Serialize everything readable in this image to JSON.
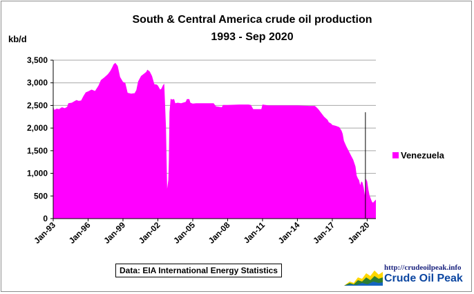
{
  "chart_data": {
    "type": "area",
    "title": "South & Central America crude oil production",
    "subtitle": "1993 - Sep 2020",
    "ylabel": "kb/d",
    "ylim": [
      0,
      3500
    ],
    "yticks": [
      "0",
      "500",
      "1,000",
      "1,500",
      "2,000",
      "2,500",
      "3,000",
      "3,500"
    ],
    "ytick_values": [
      0,
      500,
      1000,
      1500,
      2000,
      2500,
      3000,
      3500
    ],
    "xlim": [
      1993.0,
      2020.75
    ],
    "xticks": [
      "Jan-93",
      "Jan-96",
      "Jan-99",
      "Jan-02",
      "Jan-05",
      "Jan-08",
      "Jan-11",
      "Jan-14",
      "Jan-17",
      "Jan-20"
    ],
    "xtick_values": [
      1993,
      1996,
      1999,
      2002,
      2005,
      2008,
      2011,
      2014,
      2017,
      2020
    ],
    "grid": "horizontal",
    "legend": "right",
    "color": "#ff00ff",
    "series": [
      {
        "name": "Venezuela",
        "x": [
          1993.0,
          1993.1,
          1993.3,
          1993.5,
          1993.75,
          1994.0,
          1994.2,
          1994.3,
          1994.6,
          1994.8,
          1995.0,
          1995.2,
          1995.4,
          1995.6,
          1995.8,
          1996.0,
          1996.3,
          1996.6,
          1996.9,
          1997.1,
          1997.4,
          1997.7,
          1997.9,
          1998.05,
          1998.2,
          1998.35,
          1998.55,
          1998.75,
          1999.0,
          1999.2,
          1999.4,
          1999.7,
          2000.0,
          2000.15,
          2000.3,
          2000.55,
          2000.8,
          2001.0,
          2001.1,
          2001.3,
          2001.5,
          2001.7,
          2001.9,
          2002.0,
          2002.2,
          2002.3,
          2002.45,
          2002.55,
          2002.7,
          2002.8,
          2002.9,
          2002.95,
          2003.0,
          2003.1,
          2003.2,
          2003.4,
          2003.5,
          2003.7,
          2004.0,
          2004.4,
          2004.5,
          2004.7,
          2004.8,
          2005.0,
          2005.3,
          2006.0,
          2006.8,
          2007.0,
          2007.5,
          2007.6,
          2008.0,
          2009.0,
          2009.8,
          2010.0,
          2010.2,
          2010.6,
          2010.9,
          2011.0,
          2011.5,
          2012.0,
          2013.0,
          2014.0,
          2015.0,
          2015.5,
          2015.6,
          2015.8,
          2016.0,
          2016.3,
          2016.6,
          2016.7,
          2016.9,
          2017.0,
          2017.3,
          2017.6,
          2017.8,
          2017.9,
          2018.0,
          2018.2,
          2018.4,
          2018.6,
          2018.8,
          2019.0,
          2019.1,
          2019.2,
          2019.3,
          2019.4,
          2019.5,
          2019.6,
          2019.7,
          2019.8,
          2019.9,
          2020.0,
          2020.1,
          2020.2,
          2020.3,
          2020.4,
          2020.5,
          2020.6,
          2020.75
        ],
        "values": [
          2480,
          2400,
          2430,
          2420,
          2460,
          2440,
          2470,
          2550,
          2560,
          2590,
          2620,
          2600,
          2610,
          2710,
          2790,
          2810,
          2850,
          2820,
          2940,
          3060,
          3120,
          3190,
          3260,
          3330,
          3410,
          3440,
          3370,
          3130,
          3020,
          3000,
          2780,
          2760,
          2770,
          2840,
          3030,
          3150,
          3200,
          3240,
          3290,
          3250,
          3150,
          2970,
          2960,
          2940,
          2850,
          2870,
          2950,
          2980,
          2020,
          660,
          850,
          1300,
          2350,
          2650,
          2630,
          2640,
          2550,
          2560,
          2550,
          2580,
          2640,
          2640,
          2560,
          2540,
          2550,
          2550,
          2550,
          2480,
          2460,
          2510,
          2510,
          2520,
          2520,
          2510,
          2420,
          2420,
          2420,
          2520,
          2500,
          2500,
          2500,
          2500,
          2490,
          2490,
          2470,
          2420,
          2350,
          2250,
          2180,
          2130,
          2100,
          2070,
          2050,
          2020,
          1940,
          1870,
          1720,
          1600,
          1500,
          1400,
          1300,
          1150,
          950,
          890,
          850,
          740,
          820,
          800,
          690,
          520,
          880,
          820,
          650,
          520,
          450,
          380,
          350,
          380,
          420
        ]
      }
    ],
    "source_label": "Data: EIA International Energy Statistics"
  },
  "logo": {
    "url": "http://crudeoilpeak.info",
    "name": "Crude Oil Peak"
  }
}
